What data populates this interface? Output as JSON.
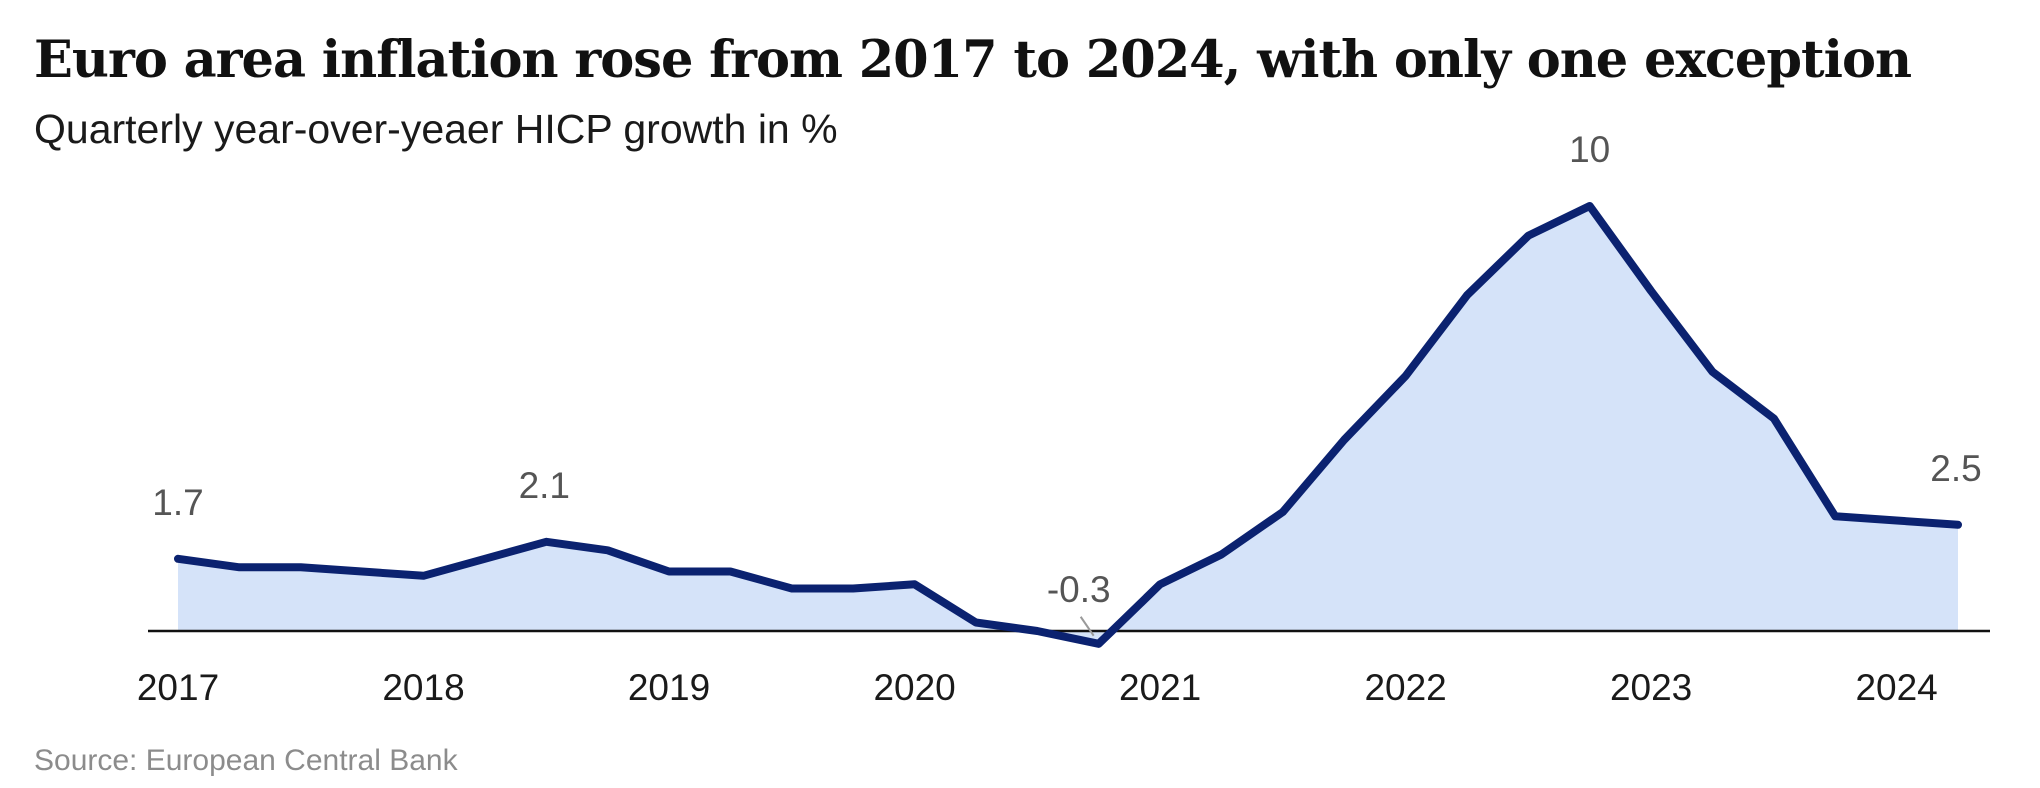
{
  "title": "Euro area inflation rose from 2017 to 2024, with only one exception",
  "subtitle": "Quarterly year-over-yeaer HICP growth in %",
  "source": "Source: European Central Bank",
  "colors": {
    "line": "#0b2270",
    "fill": "#d5e3f9",
    "axis": "#111111",
    "label": "#555555"
  },
  "chart_data": {
    "type": "area",
    "title": "Euro area inflation rose from 2017 to 2024, with only one exception",
    "xlabel": "",
    "ylabel": "Quarterly year-over-yeaer HICP growth in %",
    "x": [
      2017.0,
      2017.25,
      2017.5,
      2017.75,
      2018.0,
      2018.25,
      2018.5,
      2018.75,
      2019.0,
      2019.25,
      2019.5,
      2019.75,
      2020.0,
      2020.25,
      2020.5,
      2020.75,
      2021.0,
      2021.25,
      2021.5,
      2021.75,
      2022.0,
      2022.25,
      2022.5,
      2022.75,
      2023.0,
      2023.25,
      2023.5,
      2023.75,
      2024.0,
      2024.25
    ],
    "series": [
      {
        "name": "HICP growth",
        "values": [
          1.7,
          1.5,
          1.5,
          1.4,
          1.3,
          1.7,
          2.1,
          1.9,
          1.4,
          1.4,
          1.0,
          1.0,
          1.1,
          0.2,
          0.0,
          -0.3,
          1.1,
          1.8,
          2.8,
          4.5,
          6.0,
          7.9,
          9.3,
          10.0,
          8.0,
          6.1,
          5.0,
          2.7,
          2.6,
          2.5
        ]
      }
    ],
    "xlim": [
      2017.0,
      2024.25
    ],
    "ylim": [
      -0.3,
      10
    ],
    "xticks": [
      "2017",
      "2018",
      "2019",
      "2020",
      "2021",
      "2022",
      "2023",
      "2024"
    ],
    "annotations": [
      {
        "index": 0,
        "label": "1.7"
      },
      {
        "index": 6,
        "label": "2.1"
      },
      {
        "index": 15,
        "label": "-0.3"
      },
      {
        "index": 23,
        "label": "10"
      },
      {
        "index": 29,
        "label": "2.5"
      }
    ],
    "grid": false,
    "legend": "none"
  }
}
